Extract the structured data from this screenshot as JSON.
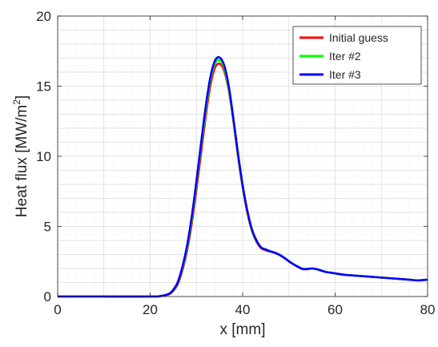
{
  "chart_data": {
    "type": "line",
    "title": "",
    "xlabel": "x [mm]",
    "ylabel_main": "Heat flux [MW/m",
    "ylabel_sup": "2",
    "ylabel_close": "]",
    "xlim": [
      0,
      80
    ],
    "ylim": [
      0,
      20
    ],
    "x_ticks": [
      0,
      20,
      40,
      60,
      80
    ],
    "y_ticks": [
      0,
      5,
      10,
      15,
      20
    ],
    "x_tick_labels": [
      "0",
      "20",
      "40",
      "60",
      "80"
    ],
    "y_tick_labels": [
      "0",
      "5",
      "10",
      "15",
      "20"
    ],
    "grid": true,
    "minor_grid": true,
    "legend_position": "top-right",
    "x": [
      0,
      10,
      20,
      22,
      24,
      25,
      26,
      27,
      28,
      29,
      30,
      31,
      32,
      33,
      34,
      35,
      36,
      37,
      38,
      39,
      40,
      41,
      42,
      43,
      44,
      45,
      46,
      47,
      48,
      49,
      50,
      51,
      52,
      53,
      54,
      55,
      56,
      57,
      58,
      59,
      60,
      62,
      64,
      66,
      68,
      70,
      72,
      74,
      76,
      78,
      80
    ],
    "series": [
      {
        "name": "Initial guess",
        "color": "#ff0000",
        "values": [
          0,
          0,
          0,
          0.02,
          0.15,
          0.4,
          0.9,
          1.9,
          3.3,
          5.2,
          7.6,
          10.2,
          12.8,
          15.0,
          16.3,
          16.6,
          16.1,
          14.7,
          12.5,
          10.0,
          7.8,
          6.0,
          4.7,
          3.9,
          3.45,
          3.3,
          3.2,
          3.1,
          2.95,
          2.75,
          2.5,
          2.3,
          2.1,
          1.95,
          1.95,
          2.0,
          1.95,
          1.85,
          1.75,
          1.7,
          1.65,
          1.55,
          1.5,
          1.45,
          1.4,
          1.35,
          1.3,
          1.25,
          1.2,
          1.15,
          1.2
        ]
      },
      {
        "name": "Iter #2",
        "color": "#00ff00",
        "values": [
          0,
          0,
          0,
          0.02,
          0.17,
          0.45,
          1.0,
          2.05,
          3.5,
          5.5,
          8.0,
          10.7,
          13.2,
          15.4,
          16.6,
          16.85,
          16.3,
          14.8,
          12.6,
          10.1,
          7.9,
          6.1,
          4.75,
          3.95,
          3.5,
          3.35,
          3.22,
          3.12,
          2.97,
          2.76,
          2.52,
          2.3,
          2.12,
          1.97,
          1.97,
          2.0,
          1.95,
          1.85,
          1.75,
          1.7,
          1.65,
          1.55,
          1.5,
          1.45,
          1.4,
          1.35,
          1.3,
          1.25,
          1.2,
          1.15,
          1.2
        ]
      },
      {
        "name": "Iter #3",
        "color": "#0000ff",
        "values": [
          0,
          0,
          0,
          0.02,
          0.18,
          0.48,
          1.05,
          2.15,
          3.65,
          5.7,
          8.2,
          10.9,
          13.5,
          15.6,
          16.8,
          17.05,
          16.5,
          15.0,
          12.7,
          10.2,
          7.95,
          6.15,
          4.8,
          4.0,
          3.5,
          3.35,
          3.22,
          3.12,
          2.97,
          2.76,
          2.52,
          2.3,
          2.12,
          1.97,
          1.97,
          2.0,
          1.95,
          1.85,
          1.75,
          1.7,
          1.65,
          1.55,
          1.5,
          1.45,
          1.4,
          1.35,
          1.3,
          1.25,
          1.2,
          1.15,
          1.2
        ]
      }
    ]
  }
}
